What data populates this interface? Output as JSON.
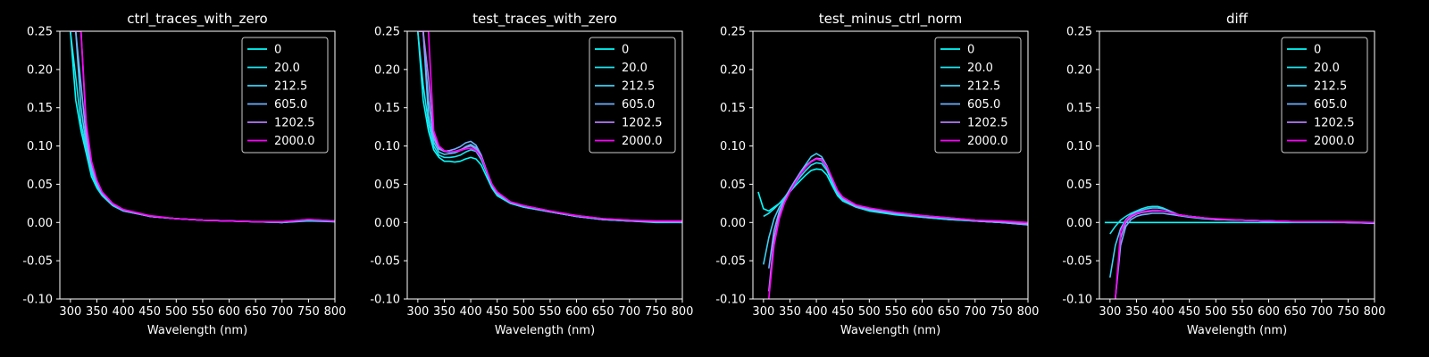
{
  "chart_data": [
    {
      "type": "line",
      "title": "ctrl_traces_with_zero",
      "xlabel": "Wavelength (nm)",
      "ylabel": "",
      "xlim": [
        280,
        800
      ],
      "ylim": [
        -0.1,
        0.25
      ],
      "xticks": [
        300,
        350,
        400,
        450,
        500,
        550,
        600,
        650,
        700,
        750,
        800
      ],
      "yticks": [
        -0.1,
        -0.05,
        0.0,
        0.05,
        0.1,
        0.15,
        0.2,
        0.25
      ],
      "ytick_labels": [
        "-0.10",
        "-0.05",
        "0.00",
        "0.05",
        "0.10",
        "0.15",
        "0.20",
        "0.25"
      ],
      "legend_position": "top-right",
      "x": [
        300,
        310,
        320,
        330,
        340,
        350,
        360,
        380,
        400,
        450,
        500,
        550,
        600,
        650,
        700,
        750,
        800
      ],
      "series": [
        {
          "name": "0",
          "color": "#00ffff",
          "values": [
            0.25,
            0.16,
            0.12,
            0.09,
            0.06,
            0.045,
            0.035,
            0.022,
            0.015,
            0.008,
            0.005,
            0.003,
            0.002,
            0.001,
            0.0,
            0.002,
            0.001
          ]
        },
        {
          "name": "20.0",
          "color": "#1ae5f0",
          "values": [
            0.25,
            0.19,
            0.13,
            0.095,
            0.065,
            0.048,
            0.036,
            0.023,
            0.015,
            0.008,
            0.005,
            0.003,
            0.002,
            0.001,
            0.0,
            0.003,
            0.001
          ]
        },
        {
          "name": "212.5",
          "color": "#3fd0f5",
          "values": [
            0.25,
            0.25,
            0.15,
            0.1,
            0.068,
            0.05,
            0.037,
            0.023,
            0.016,
            0.008,
            0.005,
            0.003,
            0.002,
            0.001,
            0.0,
            0.003,
            0.002
          ]
        },
        {
          "name": "605.0",
          "color": "#70b0ff",
          "values": [
            0.25,
            0.25,
            0.18,
            0.11,
            0.072,
            0.052,
            0.038,
            0.024,
            0.016,
            0.008,
            0.005,
            0.003,
            0.002,
            0.001,
            0.0,
            0.003,
            0.002
          ]
        },
        {
          "name": "1202.5",
          "color": "#b37cf6",
          "values": [
            0.25,
            0.25,
            0.25,
            0.12,
            0.078,
            0.054,
            0.039,
            0.024,
            0.016,
            0.008,
            0.005,
            0.003,
            0.002,
            0.001,
            0.001,
            0.004,
            0.002
          ]
        },
        {
          "name": "2000.0",
          "color": "#ff00ff",
          "values": [
            0.25,
            0.25,
            0.25,
            0.13,
            0.08,
            0.055,
            0.04,
            0.025,
            0.017,
            0.009,
            0.005,
            0.003,
            0.002,
            0.001,
            0.001,
            0.004,
            0.002
          ]
        }
      ]
    },
    {
      "type": "line",
      "title": "test_traces_with_zero",
      "xlabel": "Wavelength (nm)",
      "ylabel": "",
      "xlim": [
        280,
        800
      ],
      "ylim": [
        -0.1,
        0.25
      ],
      "xticks": [
        300,
        350,
        400,
        450,
        500,
        550,
        600,
        650,
        700,
        750,
        800
      ],
      "yticks": [
        -0.1,
        -0.05,
        0.0,
        0.05,
        0.1,
        0.15,
        0.2,
        0.25
      ],
      "ytick_labels": [
        "-0.10",
        "-0.05",
        "0.00",
        "0.05",
        "0.10",
        "0.15",
        "0.20",
        "0.25"
      ],
      "legend_position": "top-right",
      "x": [
        300,
        310,
        320,
        330,
        340,
        350,
        360,
        370,
        380,
        390,
        400,
        410,
        420,
        430,
        440,
        450,
        475,
        500,
        550,
        600,
        650,
        700,
        750,
        800
      ],
      "series": [
        {
          "name": "0",
          "color": "#00ffff",
          "values": [
            0.25,
            0.16,
            0.12,
            0.095,
            0.085,
            0.08,
            0.08,
            0.079,
            0.08,
            0.083,
            0.085,
            0.083,
            0.075,
            0.06,
            0.045,
            0.035,
            0.025,
            0.02,
            0.014,
            0.008,
            0.004,
            0.002,
            0.0,
            0.0
          ]
        },
        {
          "name": "20.0",
          "color": "#1ae5f0",
          "values": [
            0.25,
            0.18,
            0.13,
            0.1,
            0.088,
            0.085,
            0.085,
            0.086,
            0.088,
            0.092,
            0.095,
            0.093,
            0.082,
            0.065,
            0.047,
            0.036,
            0.025,
            0.02,
            0.014,
            0.008,
            0.004,
            0.002,
            0.001,
            0.0
          ]
        },
        {
          "name": "212.5",
          "color": "#3fd0f5",
          "values": [
            0.25,
            0.25,
            0.14,
            0.105,
            0.092,
            0.089,
            0.09,
            0.091,
            0.094,
            0.099,
            0.102,
            0.098,
            0.086,
            0.067,
            0.048,
            0.037,
            0.026,
            0.021,
            0.014,
            0.008,
            0.004,
            0.002,
            0.001,
            0.001
          ]
        },
        {
          "name": "605.0",
          "color": "#70b0ff",
          "values": [
            0.25,
            0.25,
            0.16,
            0.11,
            0.096,
            0.093,
            0.094,
            0.096,
            0.099,
            0.104,
            0.106,
            0.101,
            0.088,
            0.068,
            0.049,
            0.038,
            0.026,
            0.021,
            0.014,
            0.008,
            0.004,
            0.002,
            0.001,
            0.001
          ]
        },
        {
          "name": "1202.5",
          "color": "#b37cf6",
          "values": [
            0.25,
            0.25,
            0.19,
            0.115,
            0.098,
            0.093,
            0.092,
            0.093,
            0.095,
            0.098,
            0.1,
            0.096,
            0.086,
            0.068,
            0.05,
            0.039,
            0.027,
            0.022,
            0.015,
            0.009,
            0.005,
            0.003,
            0.001,
            0.001
          ]
        },
        {
          "name": "2000.0",
          "color": "#ff00ff",
          "values": [
            0.25,
            0.25,
            0.25,
            0.12,
            0.1,
            0.094,
            0.092,
            0.093,
            0.094,
            0.096,
            0.097,
            0.094,
            0.085,
            0.068,
            0.05,
            0.04,
            0.027,
            0.022,
            0.015,
            0.009,
            0.005,
            0.003,
            0.002,
            0.002
          ]
        }
      ]
    },
    {
      "type": "line",
      "title": "test_minus_ctrl_norm",
      "xlabel": "Wavelength (nm)",
      "ylabel": "",
      "xlim": [
        280,
        800
      ],
      "ylim": [
        -0.1,
        0.25
      ],
      "xticks": [
        300,
        350,
        400,
        450,
        500,
        550,
        600,
        650,
        700,
        750,
        800
      ],
      "yticks": [
        -0.1,
        -0.05,
        0.0,
        0.05,
        0.1,
        0.15,
        0.2,
        0.25
      ],
      "ytick_labels": [
        "-0.10",
        "-0.05",
        "0.00",
        "0.05",
        "0.10",
        "0.15",
        "0.20",
        "0.25"
      ],
      "legend_position": "top-right",
      "x": [
        290,
        300,
        310,
        320,
        330,
        340,
        350,
        360,
        370,
        380,
        390,
        400,
        410,
        420,
        430,
        440,
        450,
        475,
        500,
        550,
        600,
        650,
        700,
        750,
        800
      ],
      "series": [
        {
          "name": "0",
          "color": "#00ffff",
          "values": [
            0.04,
            0.018,
            0.015,
            0.02,
            0.025,
            0.032,
            0.04,
            0.048,
            0.055,
            0.062,
            0.068,
            0.07,
            0.069,
            0.062,
            0.048,
            0.035,
            0.028,
            0.02,
            0.015,
            0.01,
            0.007,
            0.004,
            0.002,
            0.0,
            -0.002
          ]
        },
        {
          "name": "20.0",
          "color": "#1ae5f0",
          "values": [
            null,
            0.008,
            0.012,
            0.018,
            0.025,
            0.033,
            0.042,
            0.051,
            0.06,
            0.068,
            0.075,
            0.078,
            0.077,
            0.068,
            0.052,
            0.037,
            0.029,
            0.02,
            0.016,
            0.011,
            0.007,
            0.004,
            0.002,
            0.0,
            -0.002
          ]
        },
        {
          "name": "212.5",
          "color": "#3fd0f5",
          "values": [
            null,
            -0.055,
            -0.02,
            0.005,
            0.02,
            0.032,
            0.044,
            0.055,
            0.066,
            0.076,
            0.086,
            0.09,
            0.086,
            0.074,
            0.056,
            0.04,
            0.031,
            0.021,
            0.017,
            0.012,
            0.008,
            0.005,
            0.002,
            0.0,
            -0.003
          ]
        },
        {
          "name": "605.0",
          "color": "#70b0ff",
          "values": [
            null,
            null,
            -0.06,
            -0.01,
            0.015,
            0.03,
            0.043,
            0.055,
            0.065,
            0.074,
            0.08,
            0.083,
            0.081,
            0.071,
            0.055,
            0.04,
            0.031,
            0.021,
            0.017,
            0.012,
            0.008,
            0.005,
            0.002,
            0.0,
            -0.003
          ]
        },
        {
          "name": "1202.5",
          "color": "#b37cf6",
          "values": [
            null,
            null,
            -0.09,
            -0.02,
            0.01,
            0.028,
            0.041,
            0.053,
            0.064,
            0.073,
            0.08,
            0.084,
            0.083,
            0.073,
            0.057,
            0.041,
            0.032,
            0.022,
            0.018,
            0.013,
            0.009,
            0.006,
            0.003,
            0.001,
            -0.002
          ]
        },
        {
          "name": "2000.0",
          "color": "#ff00ff",
          "values": [
            null,
            null,
            -0.1,
            -0.03,
            0.005,
            0.026,
            0.04,
            0.052,
            0.063,
            0.072,
            0.079,
            0.083,
            0.082,
            0.073,
            0.058,
            0.042,
            0.033,
            0.023,
            0.019,
            0.013,
            0.009,
            0.006,
            0.003,
            0.002,
            0.0
          ]
        }
      ]
    },
    {
      "type": "line",
      "title": "diff",
      "xlabel": "Wavelength (nm)",
      "ylabel": "",
      "xlim": [
        280,
        800
      ],
      "ylim": [
        -0.1,
        0.25
      ],
      "xticks": [
        300,
        350,
        400,
        450,
        500,
        550,
        600,
        650,
        700,
        750,
        800
      ],
      "yticks": [
        -0.1,
        -0.05,
        0.0,
        0.05,
        0.1,
        0.15,
        0.2,
        0.25
      ],
      "ytick_labels": [
        "-0.10",
        "-0.05",
        "0.00",
        "0.05",
        "0.10",
        "0.15",
        "0.20",
        "0.25"
      ],
      "legend_position": "top-right",
      "x": [
        290,
        300,
        310,
        320,
        330,
        340,
        350,
        360,
        370,
        380,
        390,
        400,
        410,
        420,
        430,
        450,
        475,
        500,
        550,
        600,
        650,
        700,
        750,
        800
      ],
      "series": [
        {
          "name": "0",
          "color": "#00ffff",
          "values": [
            0.0,
            0.0,
            0.0,
            0.0,
            0.0,
            0.0,
            0.0,
            0.0,
            0.0,
            0.0,
            0.0,
            0.0,
            0.0,
            0.0,
            0.0,
            0.0,
            0.0,
            0.0,
            0.0,
            0.0,
            0.0,
            0.0,
            0.0,
            0.0
          ]
        },
        {
          "name": "20.0",
          "color": "#1ae5f0",
          "values": [
            null,
            -0.015,
            -0.005,
            0.003,
            0.008,
            0.012,
            0.015,
            0.018,
            0.02,
            0.021,
            0.021,
            0.019,
            0.016,
            0.012,
            0.009,
            0.007,
            0.005,
            0.004,
            0.003,
            0.002,
            0.001,
            0.001,
            0.0,
            -0.001
          ]
        },
        {
          "name": "212.5",
          "color": "#3fd0f5",
          "values": [
            null,
            -0.072,
            -0.03,
            -0.008,
            0.004,
            0.01,
            0.014,
            0.016,
            0.018,
            0.019,
            0.019,
            0.018,
            0.016,
            0.013,
            0.01,
            0.008,
            0.006,
            0.004,
            0.003,
            0.002,
            0.001,
            0.001,
            0.0,
            -0.001
          ]
        },
        {
          "name": "605.0",
          "color": "#70b0ff",
          "values": [
            null,
            null,
            -0.1,
            -0.03,
            -0.005,
            0.004,
            0.008,
            0.01,
            0.011,
            0.012,
            0.012,
            0.012,
            0.011,
            0.01,
            0.009,
            0.008,
            0.006,
            0.004,
            0.003,
            0.002,
            0.001,
            0.001,
            0.0,
            -0.001
          ]
        },
        {
          "name": "1202.5",
          "color": "#b37cf6",
          "values": [
            null,
            null,
            -0.1,
            -0.02,
            0.0,
            0.007,
            0.011,
            0.013,
            0.014,
            0.015,
            0.015,
            0.015,
            0.014,
            0.012,
            0.01,
            0.008,
            0.006,
            0.004,
            0.003,
            0.002,
            0.001,
            0.001,
            0.0,
            0.0
          ]
        },
        {
          "name": "2000.0",
          "color": "#ff00ff",
          "values": [
            null,
            null,
            -0.1,
            -0.012,
            0.003,
            0.009,
            0.012,
            0.014,
            0.015,
            0.016,
            0.016,
            0.015,
            0.014,
            0.012,
            0.01,
            0.008,
            0.006,
            0.005,
            0.003,
            0.002,
            0.001,
            0.001,
            0.001,
            0.0
          ]
        }
      ]
    }
  ]
}
